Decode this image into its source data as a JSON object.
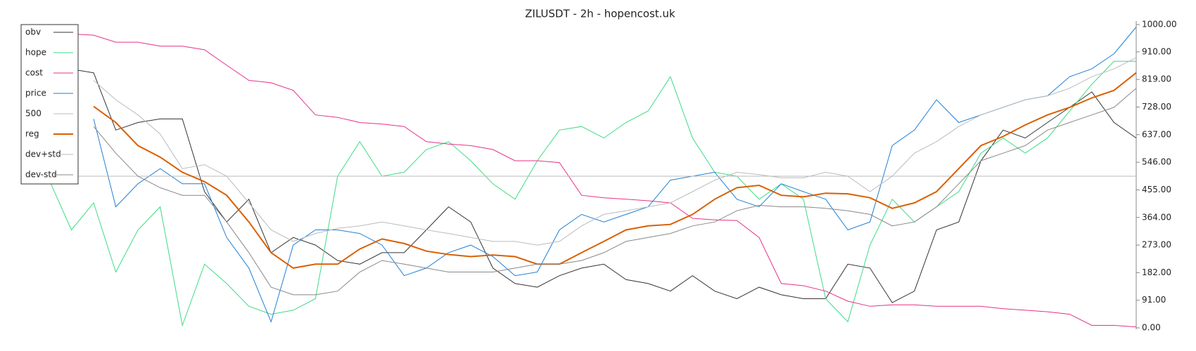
{
  "chart_data": {
    "type": "line",
    "title": "ZILUSDT - 2h - hopencost.uk",
    "ylim": [
      0,
      1000
    ],
    "yticks": [
      {
        "value": 0,
        "label": "0.00"
      },
      {
        "value": 91,
        "label": "91.00"
      },
      {
        "value": 182,
        "label": "182.00"
      },
      {
        "value": 273,
        "label": "273.00"
      },
      {
        "value": 364,
        "label": "364.00"
      },
      {
        "value": 455,
        "label": "455.00"
      },
      {
        "value": 546,
        "label": "546.00"
      },
      {
        "value": 637,
        "label": "637.00"
      },
      {
        "value": 728,
        "label": "728.00"
      },
      {
        "value": 819,
        "label": "819.00"
      },
      {
        "value": 910,
        "label": "910.00"
      },
      {
        "value": 1000,
        "label": "1000.00"
      }
    ],
    "legend": "upper left",
    "series": [
      {
        "name": "obv",
        "color": "#333333",
        "width": 1,
        "values": [
          null,
          853,
          841,
          652,
          677,
          689,
          689,
          449,
          349,
          424,
          248,
          298,
          273,
          222,
          210,
          248,
          248,
          323,
          399,
          349,
          197,
          146,
          134,
          172,
          197,
          210,
          159,
          146,
          121,
          172,
          121,
          96,
          134,
          109,
          96,
          96,
          210,
          197,
          83,
          121,
          323,
          349,
          551,
          652,
          626,
          677,
          727,
          778,
          677,
          626
        ]
      },
      {
        "name": "hope",
        "color": "#3ddc84",
        "width": 1,
        "values": [
          487,
          323,
          412,
          184,
          323,
          399,
          8,
          210,
          146,
          71,
          45,
          58,
          96,
          500,
          614,
          500,
          513,
          588,
          614,
          551,
          475,
          424,
          551,
          652,
          664,
          626,
          677,
          715,
          828,
          626,
          513,
          500,
          424,
          475,
          424,
          96,
          20,
          273,
          424,
          349,
          399,
          449,
          576,
          626,
          576,
          626,
          715,
          803,
          879,
          879
        ]
      },
      {
        "name": "cost",
        "color": "#e6318a",
        "width": 1,
        "values": [
          null,
          969,
          965,
          942,
          942,
          929,
          929,
          917,
          866,
          816,
          808,
          783,
          702,
          694,
          677,
          672,
          664,
          614,
          606,
          601,
          588,
          551,
          551,
          545,
          437,
          429,
          424,
          419,
          412,
          361,
          356,
          354,
          298,
          146,
          139,
          121,
          88,
          71,
          76,
          76,
          71,
          71,
          71,
          63,
          58,
          53,
          45,
          8,
          8,
          3
        ]
      },
      {
        "name": "price",
        "color": "#1f7fd6",
        "width": 1,
        "values": [
          null,
          null,
          689,
          399,
          475,
          525,
          475,
          475,
          298,
          197,
          20,
          273,
          323,
          323,
          311,
          273,
          172,
          197,
          248,
          273,
          235,
          172,
          184,
          323,
          374,
          349,
          374,
          399,
          487,
          500,
          513,
          424,
          399,
          475,
          449,
          424,
          323,
          349,
          601,
          652,
          752,
          677,
          702,
          727,
          752,
          765,
          828,
          854,
          904,
          992
        ]
      },
      {
        "name": "500",
        "color": "#bbbbbb",
        "width": 1,
        "values": [
          500,
          500,
          500,
          500,
          500,
          500,
          500,
          500,
          500,
          500,
          500,
          500,
          500,
          500,
          500,
          500,
          500,
          500,
          500,
          500,
          500,
          500,
          500,
          500,
          500,
          500,
          500,
          500,
          500,
          500,
          500,
          500,
          500,
          500,
          500,
          500,
          500,
          500,
          500,
          500,
          500,
          500,
          500,
          500,
          500,
          500,
          500,
          500,
          500,
          500
        ]
      },
      {
        "name": "reg",
        "color": "#d95f02",
        "width": 2,
        "values": [
          null,
          null,
          730,
          677,
          601,
          563,
          513,
          482,
          437,
          349,
          248,
          197,
          210,
          210,
          260,
          293,
          278,
          253,
          242,
          235,
          240,
          235,
          210,
          210,
          248,
          285,
          323,
          336,
          341,
          374,
          424,
          462,
          470,
          437,
          432,
          444,
          442,
          429,
          394,
          412,
          449,
          525,
          601,
          631,
          669,
          702,
          727,
          758,
          783,
          841
        ]
      },
      {
        "name": "dev+std",
        "color": "#bbbbbb",
        "width": 1,
        "values": [
          null,
          null,
          816,
          752,
          702,
          639,
          525,
          538,
          500,
          412,
          323,
          285,
          311,
          328,
          336,
          349,
          336,
          323,
          311,
          298,
          285,
          285,
          273,
          285,
          336,
          374,
          386,
          399,
          412,
          449,
          487,
          513,
          505,
          495,
          495,
          513,
          500,
          449,
          500,
          576,
          614,
          664,
          702,
          727,
          752,
          765,
          790,
          828,
          854,
          891
        ]
      },
      {
        "name": "dev-std",
        "color": "#888888",
        "width": 1,
        "values": [
          null,
          null,
          664,
          576,
          500,
          462,
          437,
          437,
          349,
          248,
          134,
          109,
          109,
          121,
          184,
          222,
          210,
          197,
          184,
          184,
          184,
          197,
          210,
          210,
          222,
          248,
          285,
          298,
          311,
          336,
          349,
          386,
          404,
          399,
          399,
          394,
          386,
          374,
          336,
          349,
          399,
          475,
          551,
          576,
          601,
          652,
          677,
          702,
          727,
          790
        ]
      }
    ]
  }
}
